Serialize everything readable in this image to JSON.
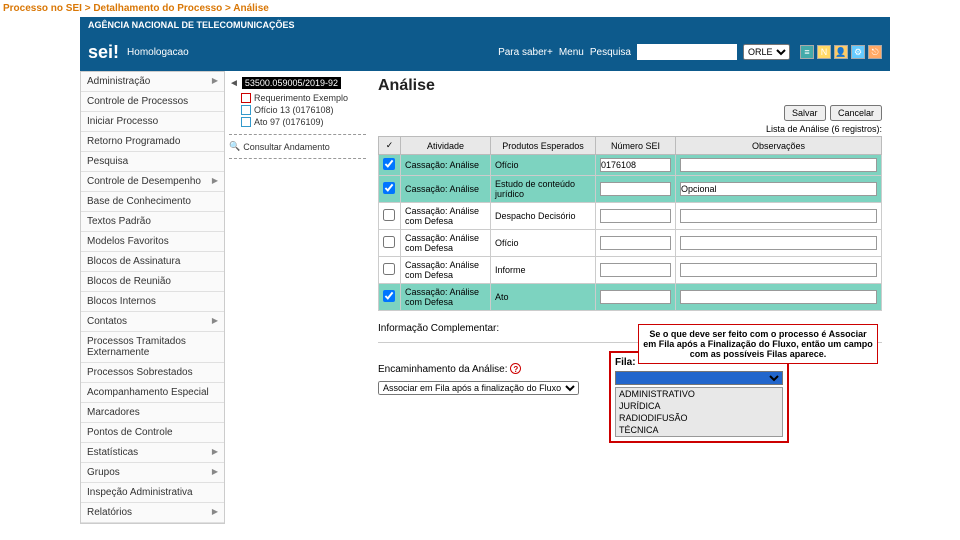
{
  "breadcrumb": "Processo no SEI > Detalhamento do Processo > Análise",
  "agency": "AGÊNCIA NACIONAL DE TELECOMUNICAÇÕES",
  "logo": "sei!",
  "env": "Homologacao",
  "topLinks": {
    "para": "Para saber+",
    "menu": "Menu",
    "pesq": "Pesquisa"
  },
  "unit": "ORLE",
  "sidebar": [
    {
      "label": "Administração",
      "sub": true
    },
    {
      "label": "Controle de Processos",
      "sub": false
    },
    {
      "label": "Iniciar Processo",
      "sub": false
    },
    {
      "label": "Retorno Programado",
      "sub": false
    },
    {
      "label": "Pesquisa",
      "sub": false
    },
    {
      "label": "Controle de Desempenho",
      "sub": true
    },
    {
      "label": "Base de Conhecimento",
      "sub": false
    },
    {
      "label": "Textos Padrão",
      "sub": false
    },
    {
      "label": "Modelos Favoritos",
      "sub": false
    },
    {
      "label": "Blocos de Assinatura",
      "sub": false
    },
    {
      "label": "Blocos de Reunião",
      "sub": false
    },
    {
      "label": "Blocos Internos",
      "sub": false
    },
    {
      "label": "Contatos",
      "sub": true
    },
    {
      "label": "Processos Tramitados Externamente",
      "sub": false
    },
    {
      "label": "Processos Sobrestados",
      "sub": false
    },
    {
      "label": "Acompanhamento Especial",
      "sub": false
    },
    {
      "label": "Marcadores",
      "sub": false
    },
    {
      "label": "Pontos de Controle",
      "sub": false
    },
    {
      "label": "Estatísticas",
      "sub": true
    },
    {
      "label": "Grupos",
      "sub": true
    },
    {
      "label": "Inspeção Administrativa",
      "sub": false
    },
    {
      "label": "Relatórios",
      "sub": true
    }
  ],
  "process": "53500.059005/2019-92",
  "tree": [
    {
      "label": "Requerimento Exemplo",
      "ic": "pdf"
    },
    {
      "label": "Ofício 13 (0176108)",
      "ic": "doc"
    },
    {
      "label": "Ato 97 (0176109)",
      "ic": "doc"
    }
  ],
  "consult": "Consultar Andamento",
  "title": "Análise",
  "btnSave": "Salvar",
  "btnCancel": "Cancelar",
  "listLabel": "Lista de Análise (6 registros):",
  "cols": {
    "chk": "✓",
    "atv": "Atividade",
    "prod": "Produtos Esperados",
    "num": "Número SEI",
    "obs": "Observações"
  },
  "rows": [
    {
      "hl": true,
      "chk": true,
      "atv": "Cassação: Análise",
      "prod": "Ofício",
      "num": "0176108",
      "obs": ""
    },
    {
      "hl": true,
      "chk": true,
      "atv": "Cassação: Análise",
      "prod": "Estudo de conteúdo jurídico",
      "num": "",
      "obs": "Opcional"
    },
    {
      "hl": false,
      "chk": false,
      "atv": "Cassação: Análise com Defesa",
      "prod": "Despacho Decisório",
      "num": "",
      "obs": ""
    },
    {
      "hl": false,
      "chk": false,
      "atv": "Cassação: Análise com Defesa",
      "prod": "Ofício",
      "num": "",
      "obs": ""
    },
    {
      "hl": false,
      "chk": false,
      "atv": "Cassação: Análise com Defesa",
      "prod": "Informe",
      "num": "",
      "obs": ""
    },
    {
      "hl": true,
      "chk": true,
      "atv": "Cassação: Análise com Defesa",
      "prod": "Ato",
      "num": "",
      "obs": ""
    }
  ],
  "infoComp": "Informação Complementar:",
  "encLabel": "Encaminhamento da Análise:",
  "encValue": "Associar em Fila após a finalização do Fluxo",
  "filaLabel": "Fila:",
  "filaOpts": [
    "ADMINISTRATIVO",
    "JURÍDICA",
    "RADIODIFUSÃO",
    "TÉCNICA"
  ],
  "callout": "Se o que deve ser feito com o processo é Associar em Fila após a Finalização do Fluxo, então um campo com as possíveis Filas aparece."
}
